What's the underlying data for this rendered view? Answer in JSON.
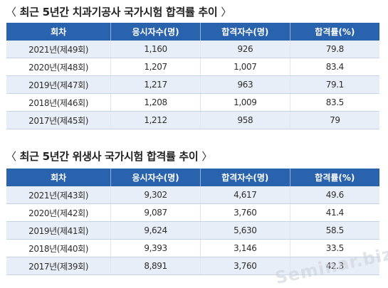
{
  "sections": [
    {
      "title": "최근 5년간 치과기공사 국가시험 합격률 추이",
      "headers": [
        "회차",
        "응시자수(명)",
        "합격자수(명)",
        "합격률(%)"
      ],
      "rows": [
        [
          "2021년(제49회)",
          "1,160",
          "926",
          "79.8"
        ],
        [
          "2020년(제48회)",
          "1,207",
          "1,007",
          "83.4"
        ],
        [
          "2019년(제47회)",
          "1,217",
          "963",
          "79.1"
        ],
        [
          "2018년(제46회)",
          "1,208",
          "1,009",
          "83.5"
        ],
        [
          "2017년(제45회)",
          "1,212",
          "958",
          "79"
        ]
      ]
    },
    {
      "title": "최근 5년간 위생사 국가시험 합격률 추이",
      "headers": [
        "회차",
        "응시자수(명)",
        "합격자수(명)",
        "합격률(%)"
      ],
      "rows": [
        [
          "2021년(제43회)",
          "9,302",
          "4,617",
          "49.6"
        ],
        [
          "2020년(제42회)",
          "9,087",
          "3,760",
          "41.4"
        ],
        [
          "2019년(제41회)",
          "9,624",
          "5,630",
          "58.5"
        ],
        [
          "2018년(제40회)",
          "9,393",
          "3,146",
          "33.5"
        ],
        [
          "2017년(제39회)",
          "8,891",
          "3,760",
          "42.3"
        ]
      ]
    }
  ],
  "watermark": "Seminar.biz",
  "colors": {
    "header_bg": "#2a63ad",
    "shade_bg": "#e8eef7"
  }
}
